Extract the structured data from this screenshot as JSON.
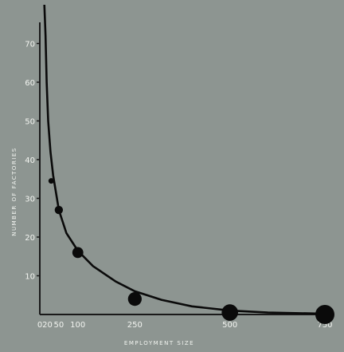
{
  "chart_data": {
    "type": "line",
    "title": "",
    "xlabel": "EMPLOYMENT SIZE",
    "ylabel": "NUMBER OF FACTORIES",
    "xlim": [
      0,
      750
    ],
    "ylim": [
      0,
      80
    ],
    "x_ticks": [
      "0",
      "20",
      "50",
      "100",
      "250",
      "500",
      "750"
    ],
    "y_ticks": [
      "10",
      "20",
      "30",
      "40",
      "50",
      "60",
      "70"
    ],
    "grid": false,
    "series": [
      {
        "curve": [
          [
            12,
            80
          ],
          [
            15,
            72
          ],
          [
            18,
            60
          ],
          [
            22,
            50
          ],
          [
            28,
            42
          ],
          [
            35,
            36
          ],
          [
            50,
            27
          ],
          [
            70,
            21
          ],
          [
            100,
            16.5
          ],
          [
            140,
            12.5
          ],
          [
            200,
            8.5
          ],
          [
            250,
            6
          ],
          [
            320,
            3.8
          ],
          [
            400,
            2.1
          ],
          [
            500,
            1
          ],
          [
            600,
            0.5
          ],
          [
            750,
            0.2
          ]
        ],
        "points": [
          [
            30,
            34.5
          ],
          [
            50,
            27
          ],
          [
            100,
            16
          ],
          [
            250,
            4
          ],
          [
            500,
            0.5
          ],
          [
            750,
            0
          ]
        ]
      }
    ],
    "colors": {
      "line": "#0a0a0a",
      "axis_text": "#f2f4f0",
      "background": "#8d9591"
    }
  }
}
